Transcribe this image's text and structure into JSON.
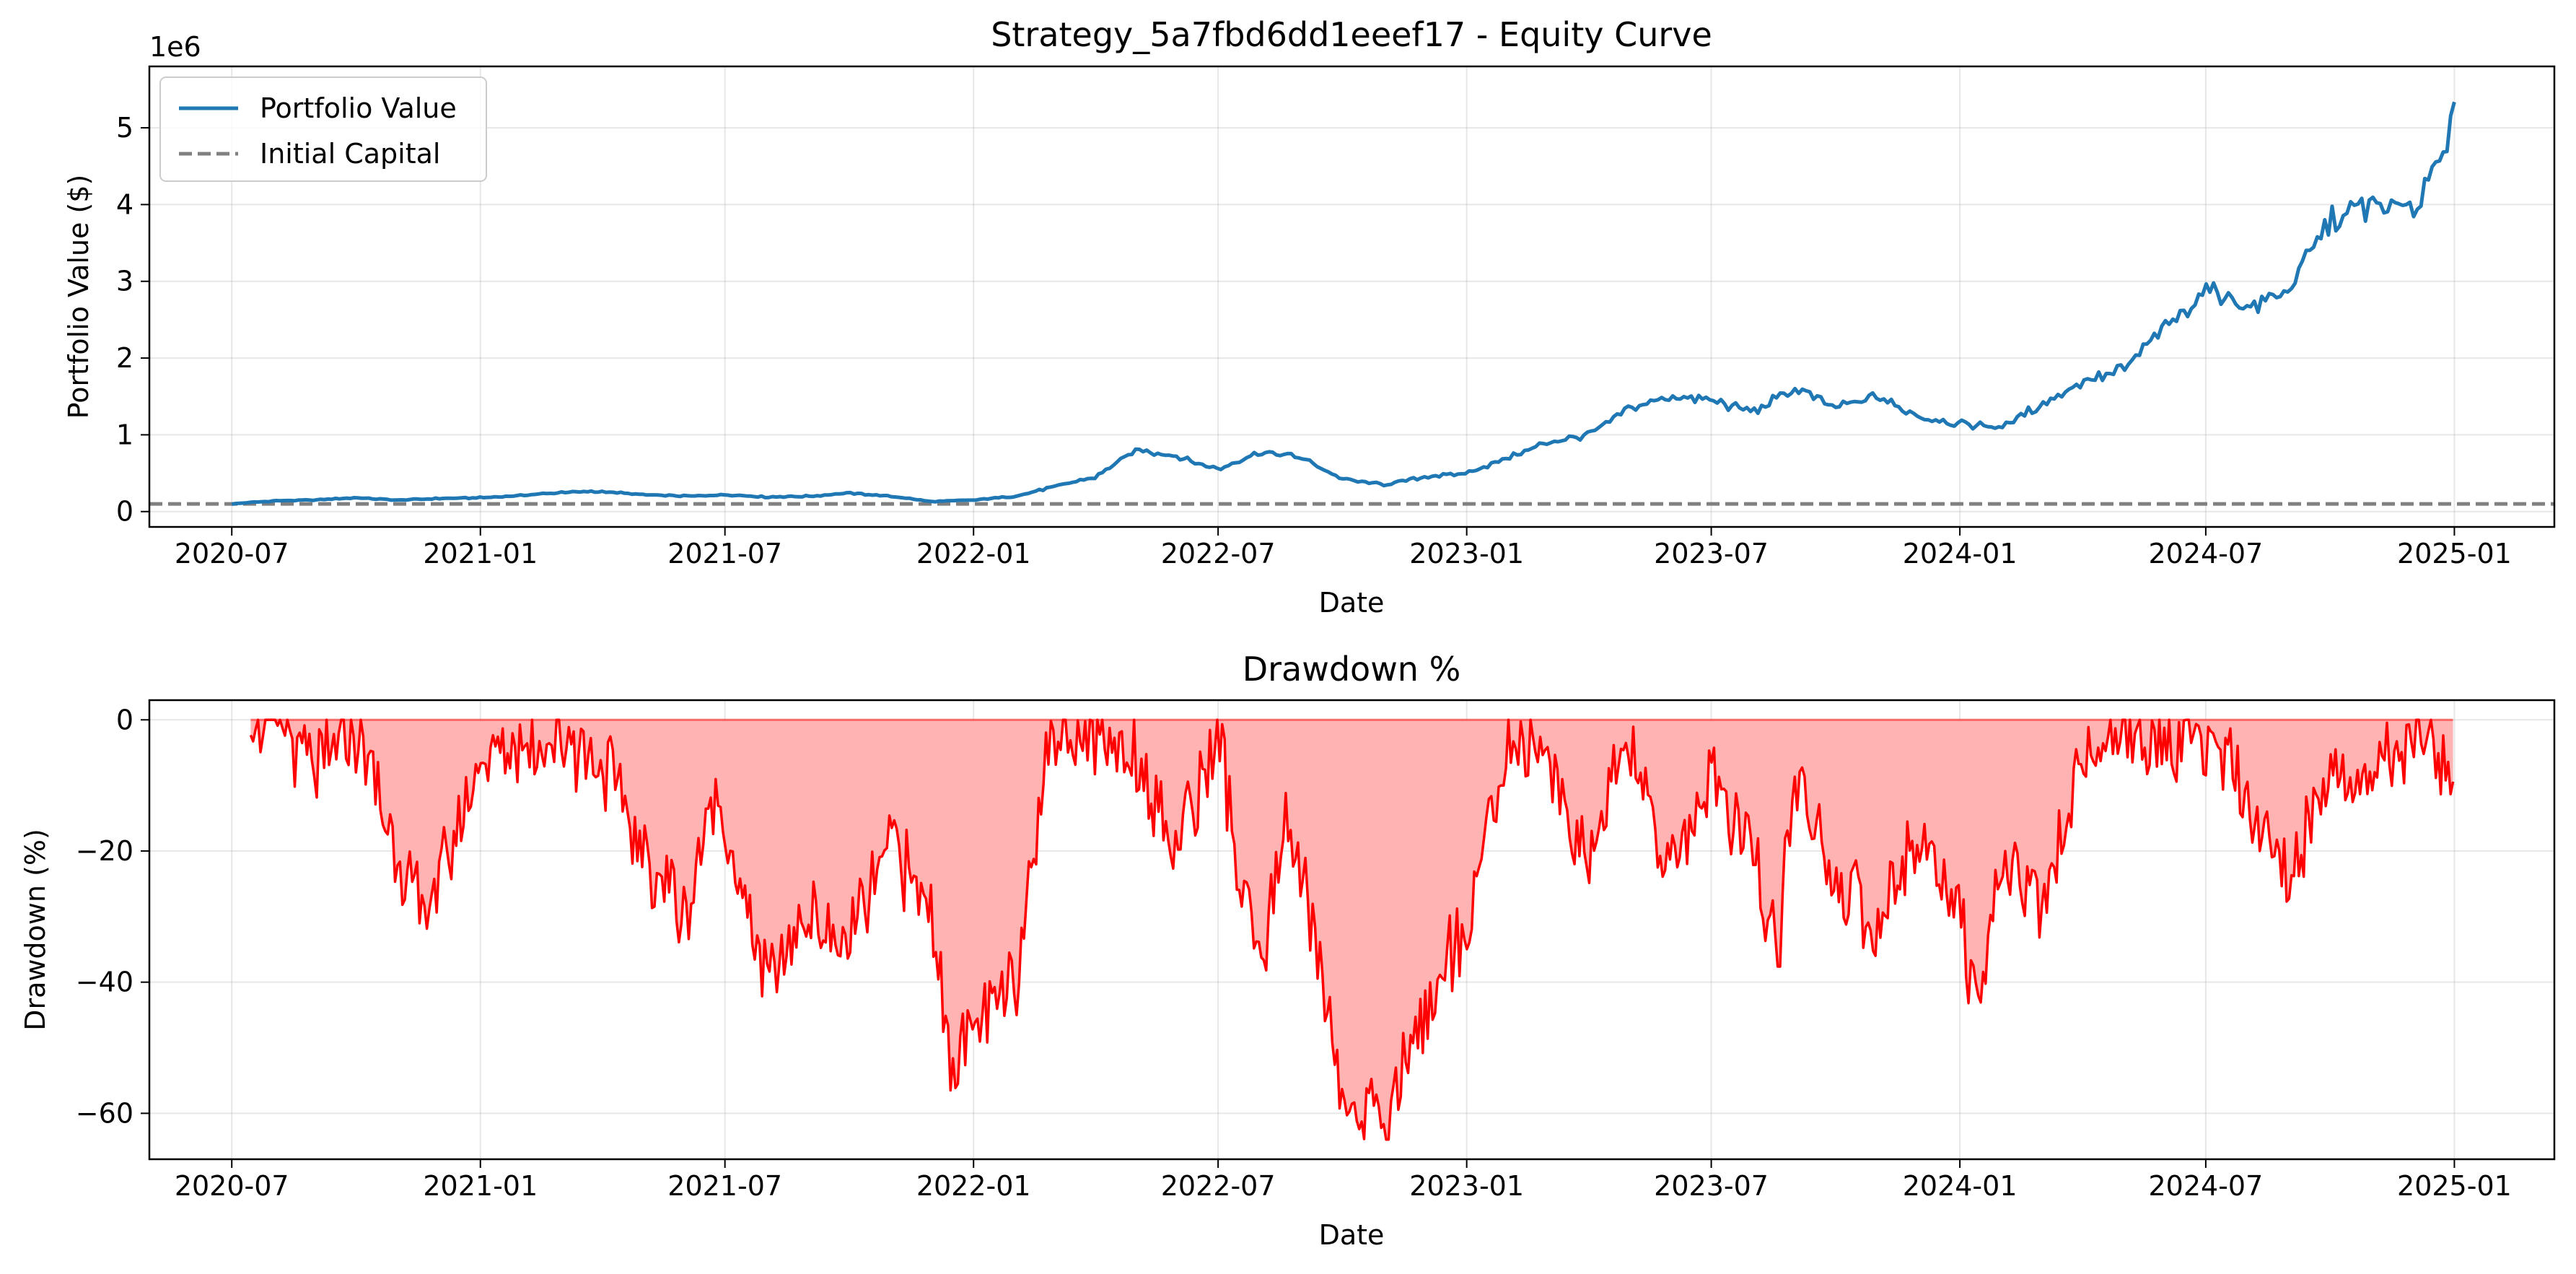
{
  "figure": {
    "exponent_label": "1e6"
  },
  "chart_data": [
    {
      "type": "line",
      "title": "Strategy_5a7fbd6dd1eeef17 - Equity Curve",
      "xlabel": "Date",
      "ylabel": "Portfolio Value ($)",
      "xlim": [
        "2020-05-01",
        "2025-03-16"
      ],
      "ylim": [
        -0.2,
        5.8
      ],
      "y_unit_multiplier": 1000000,
      "x_ticks": [
        "2020-07",
        "2021-01",
        "2021-07",
        "2022-01",
        "2022-07",
        "2023-01",
        "2023-07",
        "2024-01",
        "2024-07",
        "2025-01"
      ],
      "y_ticks": [
        0,
        1,
        2,
        3,
        4,
        5
      ],
      "grid": true,
      "legend_position": "upper-left",
      "series": [
        {
          "name": "Portfolio Value",
          "color": "#1f77b4",
          "x": [
            "2020-07-01",
            "2020-08-01",
            "2020-09-01",
            "2020-10-01",
            "2020-11-01",
            "2020-12-01",
            "2021-01-01",
            "2021-02-01",
            "2021-03-01",
            "2021-04-01",
            "2021-05-01",
            "2021-06-01",
            "2021-07-01",
            "2021-08-01",
            "2021-09-01",
            "2021-10-01",
            "2021-11-01",
            "2021-12-01",
            "2022-01-01",
            "2022-02-01",
            "2022-03-01",
            "2022-04-01",
            "2022-05-01",
            "2022-06-01",
            "2022-07-01",
            "2022-08-01",
            "2022-09-01",
            "2022-10-01",
            "2022-11-01",
            "2022-12-01",
            "2023-01-01",
            "2023-02-01",
            "2023-03-01",
            "2023-04-01",
            "2023-05-01",
            "2023-06-01",
            "2023-07-01",
            "2023-08-01",
            "2023-09-01",
            "2023-10-01",
            "2023-11-01",
            "2023-12-01",
            "2024-01-01",
            "2024-02-01",
            "2024-03-01",
            "2024-04-01",
            "2024-05-01",
            "2024-06-01",
            "2024-07-01",
            "2024-08-01",
            "2024-09-01",
            "2024-10-01",
            "2024-11-01",
            "2024-12-01",
            "2025-01-01"
          ],
          "values": [
            0.1,
            0.14,
            0.15,
            0.18,
            0.15,
            0.17,
            0.18,
            0.21,
            0.25,
            0.26,
            0.22,
            0.2,
            0.22,
            0.19,
            0.2,
            0.24,
            0.2,
            0.13,
            0.15,
            0.2,
            0.32,
            0.45,
            0.8,
            0.72,
            0.55,
            0.78,
            0.7,
            0.42,
            0.35,
            0.45,
            0.5,
            0.7,
            0.9,
            1.0,
            1.35,
            1.5,
            1.45,
            1.3,
            1.6,
            1.35,
            1.5,
            1.25,
            1.15,
            1.1,
            1.4,
            1.7,
            1.85,
            2.4,
            2.9,
            2.65,
            2.9,
            3.8,
            4.0,
            3.9,
            5.1
          ]
        },
        {
          "name": "Initial Capital",
          "color": "#808080",
          "style": "dashed",
          "constant": 0.1
        }
      ]
    },
    {
      "type": "area",
      "title": "Drawdown %",
      "xlabel": "Date",
      "ylabel": "Drawdown (%)",
      "xlim": [
        "2020-05-01",
        "2025-03-16"
      ],
      "ylim": [
        -67,
        3
      ],
      "x_ticks": [
        "2020-07",
        "2021-01",
        "2021-07",
        "2022-01",
        "2022-07",
        "2023-01",
        "2023-07",
        "2024-01",
        "2024-07",
        "2025-01"
      ],
      "y_ticks": [
        0,
        -20,
        -40,
        -60
      ],
      "grid": true,
      "series": [
        {
          "name": "Drawdown",
          "color": "#ff0000",
          "fill_color": "#ffb3b3",
          "x": [
            "2020-07-15",
            "2020-08-01",
            "2020-09-01",
            "2020-10-01",
            "2020-11-01",
            "2020-11-20",
            "2020-12-15",
            "2021-01-01",
            "2021-02-01",
            "2021-03-01",
            "2021-04-01",
            "2021-05-01",
            "2021-06-01",
            "2021-06-25",
            "2021-07-15",
            "2021-08-01",
            "2021-09-01",
            "2021-10-01",
            "2021-11-01",
            "2021-12-01",
            "2021-12-15",
            "2022-01-01",
            "2022-02-01",
            "2022-02-20",
            "2022-03-01",
            "2022-04-01",
            "2022-05-01",
            "2022-06-01",
            "2022-07-01",
            "2022-07-15",
            "2022-08-01",
            "2022-08-20",
            "2022-09-01",
            "2022-10-01",
            "2022-11-01",
            "2022-11-20",
            "2022-12-01",
            "2023-01-01",
            "2023-02-01",
            "2023-02-20",
            "2023-03-01",
            "2023-04-01",
            "2023-05-01",
            "2023-06-01",
            "2023-07-01",
            "2023-08-01",
            "2023-08-20",
            "2023-09-01",
            "2023-10-01",
            "2023-11-01",
            "2023-12-01",
            "2024-01-01",
            "2024-01-15",
            "2024-02-01",
            "2024-03-01",
            "2024-04-01",
            "2024-05-01",
            "2024-06-01",
            "2024-07-01",
            "2024-08-01",
            "2024-09-01",
            "2024-10-01",
            "2024-11-01",
            "2024-12-01",
            "2024-12-31"
          ],
          "values": [
            0,
            0,
            -8,
            -2,
            -20,
            -30,
            -18,
            -5,
            -3,
            -3,
            -6,
            -20,
            -30,
            -10,
            -28,
            -40,
            -30,
            -35,
            -18,
            -30,
            -52,
            -48,
            -40,
            -10,
            -2,
            -2,
            -5,
            -20,
            -2,
            -22,
            -40,
            -15,
            -25,
            -57,
            -62,
            -50,
            -45,
            -30,
            -4,
            -2,
            -8,
            -20,
            -5,
            -22,
            -10,
            -20,
            -35,
            -8,
            -25,
            -32,
            -18,
            -28,
            -48,
            -20,
            -30,
            -5,
            -2,
            -4,
            -3,
            -12,
            -25,
            -8,
            -10,
            -2,
            -10
          ]
        }
      ]
    }
  ]
}
